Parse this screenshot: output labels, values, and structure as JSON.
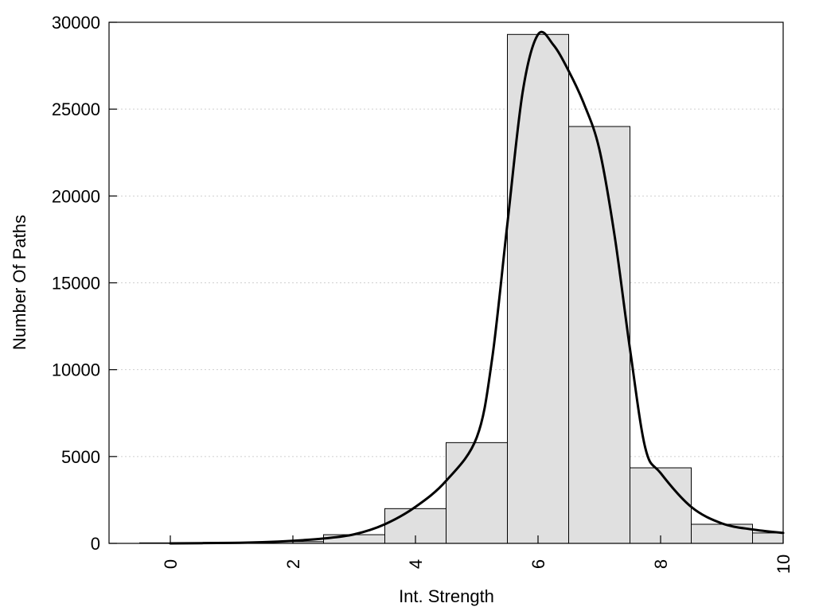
{
  "chart_data": {
    "type": "bar",
    "title": "",
    "xlabel": "Int. Strength",
    "ylabel": "Number Of Paths",
    "xlim": [
      -1,
      10
    ],
    "ylim": [
      0,
      30000
    ],
    "grid": true,
    "x_ticks": [
      "0",
      "2",
      "4",
      "6",
      "8",
      "10"
    ],
    "y_ticks": [
      "0",
      "5000",
      "10000",
      "15000",
      "20000",
      "25000",
      "30000"
    ],
    "bar_color": "#e0e0e0",
    "edge_color": "#000000",
    "line_color": "#000000",
    "categories": [
      "0",
      "1",
      "2",
      "3",
      "4",
      "5",
      "6",
      "7",
      "8",
      "9",
      "10"
    ],
    "values": [
      30,
      20,
      100,
      500,
      2000,
      5800,
      29300,
      24000,
      4350,
      1100,
      600
    ],
    "series": [
      {
        "type": "line",
        "x": [
          0,
          1,
          1.5,
          2,
          2.5,
          3,
          3.5,
          4,
          4.5,
          5,
          5.25,
          5.5,
          5.75,
          6,
          6.25,
          6.5,
          6.75,
          7,
          7.25,
          7.5,
          7.75,
          8,
          8.5,
          9,
          9.5,
          10
        ],
        "y": [
          0,
          30,
          70,
          150,
          280,
          520,
          1100,
          2100,
          3600,
          6100,
          10600,
          18400,
          26000,
          29300,
          28700,
          27200,
          25300,
          22700,
          17700,
          11200,
          5500,
          4050,
          2100,
          1150,
          800,
          600
        ]
      }
    ]
  }
}
